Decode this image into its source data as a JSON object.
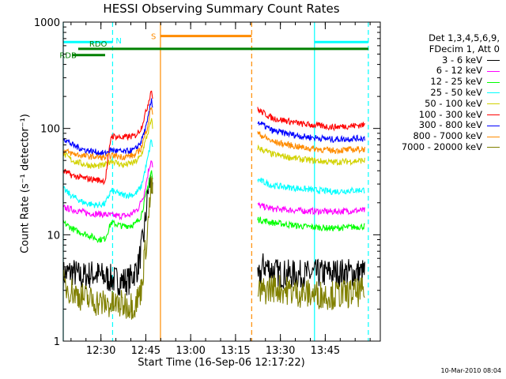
{
  "chart_data": {
    "type": "line",
    "title": "HESSI Observing Summary Count Rates",
    "xlabel": "Start Time (16-Sep-06 12:17:22)",
    "ylabel": "Count Rate (s⁻¹ detector⁻¹)",
    "yscale": "log",
    "ylim": [
      1,
      1000
    ],
    "xlim_minutes": [
      0,
      106
    ],
    "x_ticks": [
      {
        "minute": 12.6,
        "label": "12:30"
      },
      {
        "minute": 27.6,
        "label": "12:45"
      },
      {
        "minute": 42.6,
        "label": "13:00"
      },
      {
        "minute": 57.6,
        "label": "13:15"
      },
      {
        "minute": 72.6,
        "label": "13:30"
      },
      {
        "minute": 87.6,
        "label": "13:45"
      }
    ],
    "y_ticks": [
      {
        "value": 1,
        "label": "1"
      },
      {
        "value": 10,
        "label": "10"
      },
      {
        "value": 100,
        "label": "100"
      },
      {
        "value": 1000,
        "label": "1000"
      }
    ],
    "legend_header": [
      "Det 1,3,4,5,6,9,",
      "FDecim 1, Att 0"
    ],
    "series": [
      {
        "name": "3 - 6 keV",
        "color": "#000000",
        "points": [
          [
            0,
            4.2
          ],
          [
            3,
            4.5
          ],
          [
            6,
            4.0
          ],
          [
            10,
            4.3
          ],
          [
            14,
            4.0
          ],
          [
            18,
            3.7
          ],
          [
            22,
            3.7
          ],
          [
            25,
            5.0
          ],
          [
            27,
            10.0
          ],
          [
            28.5,
            28.0
          ],
          [
            29.5,
            34.0
          ],
          [
            30,
            20.0
          ]
        ],
        "points2": [
          [
            65,
            3.6
          ],
          [
            67,
            5.2
          ],
          [
            72,
            4.3
          ],
          [
            80,
            4.2
          ],
          [
            90,
            4.4
          ],
          [
            101,
            4.4
          ]
        ]
      },
      {
        "name": "6 - 12 keV",
        "color": "#ff00ff",
        "points": [
          [
            0,
            18.0
          ],
          [
            4,
            17.0
          ],
          [
            8,
            16.0
          ],
          [
            14,
            15.5
          ],
          [
            18,
            15.0
          ],
          [
            22,
            15.2
          ],
          [
            25,
            17.5
          ],
          [
            27,
            24.0
          ],
          [
            28.5,
            40.0
          ],
          [
            29.5,
            52.0
          ],
          [
            30,
            40.0
          ]
        ],
        "points2": [
          [
            65,
            19.0
          ],
          [
            70,
            17.5
          ],
          [
            80,
            16.8
          ],
          [
            90,
            16.5
          ],
          [
            101,
            17.0
          ]
        ]
      },
      {
        "name": "12 - 25 keV",
        "color": "#00ff00",
        "points": [
          [
            0,
            13.0
          ],
          [
            4,
            11.0
          ],
          [
            8,
            10.0
          ],
          [
            12,
            9.0
          ],
          [
            14,
            9.2
          ],
          [
            16,
            13.0
          ],
          [
            20,
            12.0
          ],
          [
            24,
            12.5
          ],
          [
            26,
            15.0
          ],
          [
            28,
            26.0
          ],
          [
            29.5,
            40.0
          ],
          [
            30,
            30.0
          ]
        ],
        "points2": [
          [
            65,
            14.0
          ],
          [
            70,
            13.0
          ],
          [
            80,
            12.0
          ],
          [
            90,
            11.5
          ],
          [
            101,
            12.0
          ]
        ]
      },
      {
        "name": "25 - 50 keV",
        "color": "#00ffff",
        "points": [
          [
            0,
            27.0
          ],
          [
            3,
            23.0
          ],
          [
            7,
            20.0
          ],
          [
            11,
            19.0
          ],
          [
            14,
            19.5
          ],
          [
            16,
            26.0
          ],
          [
            20,
            23.5
          ],
          [
            24,
            24.0
          ],
          [
            26,
            28.0
          ],
          [
            28,
            48.0
          ],
          [
            29.5,
            80.0
          ],
          [
            30,
            60.0
          ]
        ],
        "points2": [
          [
            65,
            33.0
          ],
          [
            70,
            29.0
          ],
          [
            80,
            27.0
          ],
          [
            90,
            25.5
          ],
          [
            101,
            26.5
          ]
        ]
      },
      {
        "name": "50 - 100 keV",
        "color": "#d2d200",
        "points": [
          [
            0,
            58.0
          ],
          [
            3,
            50.0
          ],
          [
            7,
            46.0
          ],
          [
            11,
            44.0
          ],
          [
            14,
            45.0
          ],
          [
            16,
            50.0
          ],
          [
            20,
            45.0
          ],
          [
            24,
            48.0
          ],
          [
            26,
            55.0
          ],
          [
            28,
            85.0
          ],
          [
            29.5,
            120.0
          ],
          [
            30,
            95.0
          ]
        ],
        "points2": [
          [
            65,
            66.0
          ],
          [
            70,
            57.0
          ],
          [
            80,
            51.0
          ],
          [
            90,
            48.0
          ],
          [
            101,
            50.0
          ]
        ]
      },
      {
        "name": "100 - 300 keV",
        "color": "#ff0000",
        "points": [
          [
            0,
            40.0
          ],
          [
            3,
            36.0
          ],
          [
            7,
            34.0
          ],
          [
            11,
            33.0
          ],
          [
            14,
            32.0
          ],
          [
            16,
            85.0
          ],
          [
            20,
            82.0
          ],
          [
            24,
            85.0
          ],
          [
            26,
            100.0
          ],
          [
            28,
            155.0
          ],
          [
            29.5,
            235.0
          ],
          [
            30,
            180.0
          ]
        ],
        "points2": [
          [
            65,
            150.0
          ],
          [
            70,
            125.0
          ],
          [
            80,
            110.0
          ],
          [
            90,
            103.0
          ],
          [
            101,
            108.0
          ]
        ]
      },
      {
        "name": "300 - 800 keV",
        "color": "#0000ff",
        "points": [
          [
            0,
            82.0
          ],
          [
            3,
            70.0
          ],
          [
            7,
            63.0
          ],
          [
            11,
            60.0
          ],
          [
            14,
            58.0
          ],
          [
            16,
            63.0
          ],
          [
            20,
            60.0
          ],
          [
            24,
            63.0
          ],
          [
            26,
            75.0
          ],
          [
            28,
            110.0
          ],
          [
            29.5,
            190.0
          ],
          [
            30,
            150.0
          ]
        ],
        "points2": [
          [
            65,
            115.0
          ],
          [
            70,
            95.0
          ],
          [
            80,
            84.0
          ],
          [
            90,
            79.0
          ],
          [
            101,
            81.0
          ]
        ]
      },
      {
        "name": "800 - 7000 keV",
        "color": "#ff8c00",
        "points": [
          [
            0,
            62.0
          ],
          [
            3,
            58.0
          ],
          [
            7,
            55.0
          ],
          [
            11,
            54.0
          ],
          [
            14,
            53.0
          ],
          [
            16,
            56.0
          ],
          [
            20,
            54.0
          ],
          [
            24,
            56.0
          ],
          [
            26,
            65.0
          ],
          [
            28,
            100.0
          ],
          [
            29.5,
            165.0
          ],
          [
            30,
            130.0
          ]
        ],
        "points2": [
          [
            65,
            90.0
          ],
          [
            70,
            75.0
          ],
          [
            80,
            66.0
          ],
          [
            90,
            62.0
          ],
          [
            101,
            64.0
          ]
        ]
      },
      {
        "name": "7000 - 20000 keV",
        "color": "#808000",
        "points": [
          [
            0,
            3.4
          ],
          [
            4,
            2.8
          ],
          [
            8,
            2.5
          ],
          [
            12,
            2.3
          ],
          [
            16,
            2.2
          ],
          [
            20,
            2.2
          ],
          [
            24,
            2.2
          ],
          [
            26,
            3.0
          ],
          [
            28,
            10.0
          ],
          [
            29.5,
            30.0
          ],
          [
            30,
            20.0
          ]
        ],
        "points2": [
          [
            65,
            2.8
          ],
          [
            70,
            3.2
          ],
          [
            80,
            2.8
          ],
          [
            90,
            2.7
          ],
          [
            101,
            2.9
          ]
        ]
      }
    ],
    "flag_bars": [
      {
        "label": "N",
        "color": "#00ffff",
        "start": 0,
        "end": 16.5,
        "value": 650
      },
      {
        "label": "",
        "color": "#00ffff",
        "start": 84,
        "end": 102,
        "value": 650
      },
      {
        "label": "S",
        "color": "#ff8c00",
        "start": 32.5,
        "end": 63,
        "value": 740
      },
      {
        "label": "RDO",
        "color": "#008000",
        "start": 5,
        "end": 102,
        "value": 560
      },
      {
        "label": "RDB",
        "color": "#008000",
        "start": 3,
        "end": 14,
        "value": 490
      }
    ],
    "vertical_markers": [
      {
        "minute": 0,
        "color": "#00ffff",
        "style": "solid"
      },
      {
        "minute": 16.5,
        "color": "#00ffff",
        "style": "dashed"
      },
      {
        "minute": 32.5,
        "color": "#ff8c00",
        "style": "solid"
      },
      {
        "minute": 63,
        "color": "#ff8c00",
        "style": "dashed"
      },
      {
        "minute": 84,
        "color": "#00ffff",
        "style": "solid"
      },
      {
        "minute": 102,
        "color": "#00ffff",
        "style": "dashed"
      }
    ]
  },
  "footer": "10-Mar-2010 08:04"
}
